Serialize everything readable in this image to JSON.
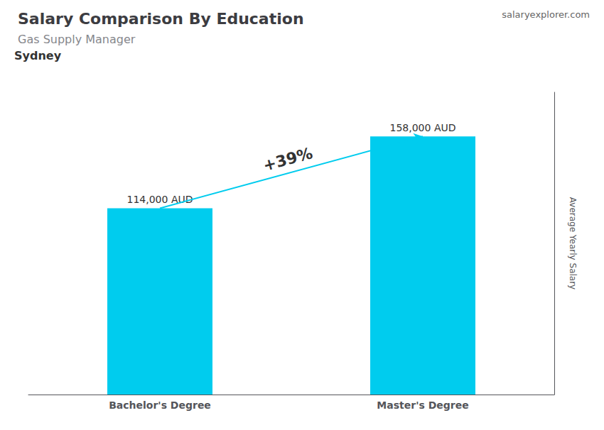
{
  "chart_data": {
    "type": "bar",
    "title": "Salary Comparison By Education",
    "subtitle": "Gas Supply Manager",
    "ylabel": "Average Yearly Salary",
    "categories": [
      "Bachelor's Degree",
      "Master's Degree"
    ],
    "values": [
      114000,
      158000
    ],
    "value_labels": [
      "114,000 AUD",
      "158,000 AUD"
    ],
    "data_labels": true,
    "color": "#00ccee",
    "ylim": [
      0,
      185000
    ],
    "tick_labels": "x",
    "grid": false,
    "annotations": [
      {
        "text": "Sydney"
      },
      {
        "text": "salaryexplorer.com"
      },
      {
        "text": "+39%"
      }
    ]
  }
}
